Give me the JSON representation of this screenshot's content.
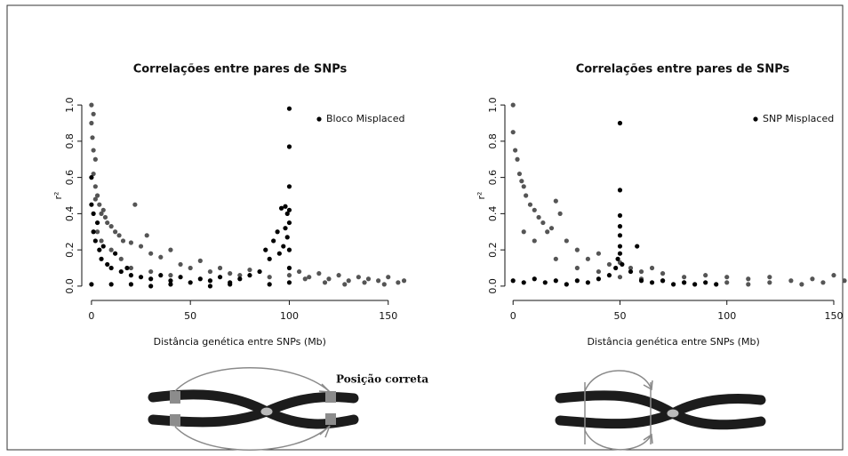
{
  "chart_data": [
    {
      "type": "scatter",
      "title": "Correlações entre pares de SNPs",
      "xlabel": "Distância genética entre SNPs (Mb)",
      "ylabel": "r²",
      "xlim": [
        -4,
        160
      ],
      "ylim": [
        -0.03,
        1.03
      ],
      "xticks": [
        0,
        50,
        100,
        150
      ],
      "yticks": [
        {
          "value": 0,
          "label": "0.0"
        },
        0.2,
        0.4,
        0.6,
        0.8,
        {
          "value": 1,
          "label": "1.0"
        }
      ],
      "legend": "top-right",
      "series": [
        {
          "color": "#555555",
          "x": [
            0,
            0,
            0.5,
            1,
            1,
            2,
            2,
            3,
            4,
            5,
            6,
            7,
            8,
            10,
            12,
            14,
            16,
            20,
            22,
            25,
            28,
            30,
            35,
            40,
            45,
            50,
            55,
            60,
            65,
            70,
            75,
            80,
            90,
            100,
            105,
            110,
            115,
            120,
            125,
            130,
            135,
            140,
            145,
            150,
            155,
            158,
            3,
            5,
            10,
            15,
            20,
            30,
            40,
            2,
            1,
            108,
            118,
            128,
            138,
            148
          ],
          "values": [
            1.0,
            0.9,
            0.82,
            0.75,
            0.62,
            0.55,
            0.48,
            0.5,
            0.45,
            0.4,
            0.42,
            0.38,
            0.35,
            0.33,
            0.3,
            0.28,
            0.25,
            0.24,
            0.45,
            0.22,
            0.28,
            0.18,
            0.16,
            0.2,
            0.12,
            0.1,
            0.14,
            0.08,
            0.1,
            0.07,
            0.06,
            0.09,
            0.05,
            0.06,
            0.08,
            0.05,
            0.07,
            0.04,
            0.06,
            0.03,
            0.05,
            0.04,
            0.03,
            0.05,
            0.02,
            0.03,
            0.3,
            0.25,
            0.2,
            0.15,
            0.1,
            0.08,
            0.06,
            0.7,
            0.95,
            0.04,
            0.02,
            0.01,
            0.02,
            0.01
          ]
        },
        {
          "name": "Bloco Misplaced",
          "color": "#000000",
          "x": [
            0,
            0,
            1,
            1,
            2,
            3,
            4,
            5,
            6,
            8,
            10,
            12,
            15,
            18,
            20,
            25,
            30,
            35,
            40,
            45,
            50,
            55,
            60,
            65,
            70,
            75,
            80,
            85,
            88,
            90,
            92,
            94,
            95,
            96,
            97,
            98,
            98,
            99,
            99,
            100,
            100,
            100,
            100,
            100,
            100,
            100,
            100,
            0,
            10,
            20,
            30,
            40,
            60,
            70,
            90
          ],
          "values": [
            0.6,
            0.45,
            0.4,
            0.3,
            0.25,
            0.35,
            0.2,
            0.15,
            0.22,
            0.12,
            0.1,
            0.18,
            0.08,
            0.1,
            0.06,
            0.05,
            0.04,
            0.06,
            0.03,
            0.05,
            0.02,
            0.04,
            0.03,
            0.05,
            0.02,
            0.04,
            0.06,
            0.08,
            0.2,
            0.15,
            0.25,
            0.3,
            0.18,
            0.43,
            0.22,
            0.44,
            0.32,
            0.4,
            0.27,
            0.98,
            0.77,
            0.55,
            0.42,
            0.35,
            0.2,
            0.1,
            0.02,
            0.01,
            0.01,
            0.01,
            0.0,
            0.01,
            0.0,
            0.01,
            0.01
          ]
        }
      ]
    },
    {
      "type": "scatter",
      "title": "Correlações entre pares de SNPs",
      "xlabel": "Distância genética entre SNPs (Mb)",
      "ylabel": "r²",
      "xlim": [
        -3,
        155
      ],
      "ylim": [
        -0.03,
        1.03
      ],
      "xticks": [
        0,
        50,
        100,
        150
      ],
      "yticks": [
        {
          "value": 0,
          "label": "0.0"
        },
        0.2,
        0.4,
        0.6,
        0.8,
        {
          "value": 1,
          "label": "1.0"
        }
      ],
      "legend": "top-right",
      "series": [
        {
          "color": "#555555",
          "x": [
            0,
            0,
            1,
            2,
            3,
            4,
            5,
            6,
            8,
            10,
            12,
            14,
            16,
            18,
            20,
            22,
            25,
            30,
            35,
            40,
            45,
            50,
            55,
            60,
            65,
            70,
            80,
            90,
            100,
            110,
            120,
            130,
            140,
            150,
            155,
            5,
            10,
            20,
            30,
            40,
            50,
            60,
            70,
            80,
            100,
            110,
            120,
            135,
            145
          ],
          "values": [
            1.0,
            0.85,
            0.75,
            0.7,
            0.62,
            0.58,
            0.55,
            0.5,
            0.45,
            0.42,
            0.38,
            0.35,
            0.3,
            0.32,
            0.47,
            0.4,
            0.25,
            0.2,
            0.15,
            0.18,
            0.12,
            0.13,
            0.1,
            0.08,
            0.1,
            0.07,
            0.05,
            0.06,
            0.05,
            0.04,
            0.05,
            0.03,
            0.04,
            0.06,
            0.03,
            0.3,
            0.25,
            0.15,
            0.1,
            0.08,
            0.05,
            0.04,
            0.03,
            0.02,
            0.02,
            0.01,
            0.02,
            0.01,
            0.02
          ]
        },
        {
          "name": "SNP Misplaced",
          "color": "#000000",
          "x": [
            0,
            5,
            10,
            15,
            20,
            25,
            30,
            35,
            40,
            45,
            48,
            49,
            50,
            50,
            50,
            50,
            50,
            50,
            50,
            51,
            55,
            58,
            60,
            65,
            70,
            75,
            80,
            85,
            90,
            95
          ],
          "values": [
            0.03,
            0.02,
            0.04,
            0.02,
            0.03,
            0.01,
            0.03,
            0.02,
            0.04,
            0.06,
            0.1,
            0.15,
            0.9,
            0.53,
            0.39,
            0.33,
            0.28,
            0.22,
            0.18,
            0.12,
            0.08,
            0.22,
            0.03,
            0.02,
            0.03,
            0.01,
            0.02,
            0.01,
            0.02,
            0.01
          ]
        }
      ]
    }
  ],
  "diagram": {
    "label": "Posição correta"
  }
}
